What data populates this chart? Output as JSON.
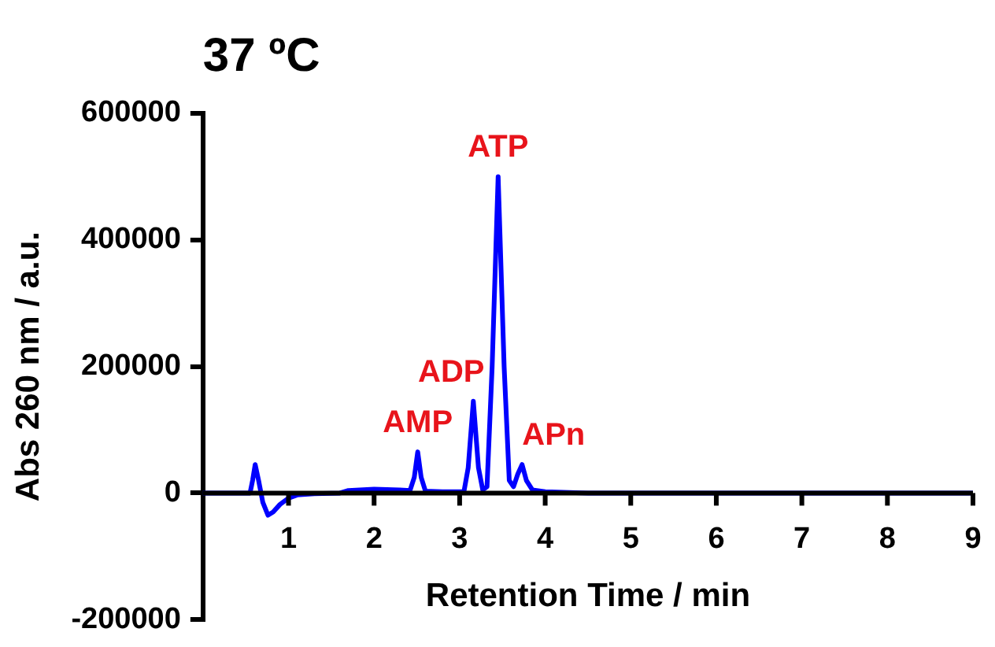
{
  "chart_data": {
    "type": "line",
    "title": "37 ºC",
    "xlabel": "Retention Time / min",
    "ylabel": "Abs 260 nm / a.u.",
    "x": [
      0,
      0.55,
      0.58,
      0.61,
      0.65,
      0.7,
      0.76,
      0.82,
      0.9,
      1.0,
      1.1,
      1.3,
      1.6,
      1.7,
      2.0,
      2.3,
      2.42,
      2.47,
      2.51,
      2.55,
      2.6,
      2.8,
      3.05,
      3.1,
      3.16,
      3.22,
      3.27,
      3.32,
      3.38,
      3.45,
      3.52,
      3.58,
      3.63,
      3.68,
      3.73,
      3.78,
      3.85,
      4.0,
      4.5,
      9
    ],
    "series": [
      {
        "color": "#0000ff",
        "values": [
          0,
          0,
          20000,
          45000,
          20000,
          -15000,
          -35000,
          -30000,
          -18000,
          -8000,
          -3000,
          -1000,
          0,
          4000,
          6000,
          5000,
          4000,
          25000,
          65000,
          25000,
          3000,
          2000,
          2000,
          40000,
          145000,
          40000,
          5000,
          10000,
          200000,
          500000,
          200000,
          20000,
          10000,
          30000,
          45000,
          20000,
          5000,
          2000,
          0,
          0
        ]
      }
    ],
    "xlim": [
      0,
      9
    ],
    "xticks": [
      1,
      2,
      3,
      4,
      5,
      6,
      7,
      8,
      9
    ],
    "ylim": [
      -200000,
      600000
    ],
    "yticks": [
      -200000,
      0,
      200000,
      400000,
      600000
    ],
    "grid": false,
    "legend": false,
    "marker": "none",
    "line_style": "solid",
    "annotations": [
      {
        "text": "AMP",
        "x": 2.51,
        "y": 65000
      },
      {
        "text": "ADP",
        "x": 3.16,
        "y": 145000
      },
      {
        "text": "ATP",
        "x": 3.45,
        "y": 500000
      },
      {
        "text": "APn",
        "x": 3.73,
        "y": 45000
      }
    ]
  }
}
